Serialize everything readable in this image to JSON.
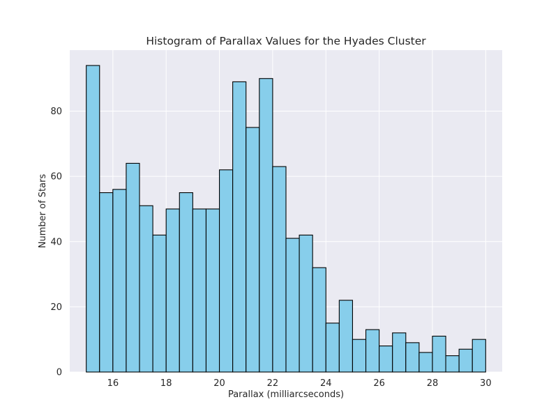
{
  "chart_data": {
    "type": "bar",
    "title": "Histogram of Parallax Values for the Hyades Cluster",
    "xlabel": "Parallax (milliarcseconds)",
    "ylabel": "Number of Stars",
    "xlim": [
      14.38,
      30.62
    ],
    "ylim": [
      0,
      98.7
    ],
    "xticks": [
      16,
      18,
      20,
      22,
      24,
      26,
      28,
      30
    ],
    "yticks": [
      0,
      20,
      40,
      60,
      80
    ],
    "grid": true,
    "bar_color": "#87CEEB",
    "edge_color": "#000000",
    "background_color": "#EAEAF2",
    "grid_color": "#FFFFFF",
    "bin_start": 15,
    "bin_width": 0.5,
    "values": [
      94,
      55,
      56,
      64,
      51,
      42,
      50,
      55,
      50,
      50,
      62,
      89,
      75,
      90,
      63,
      41,
      42,
      32,
      15,
      22,
      10,
      13,
      8,
      12,
      9,
      6,
      11,
      5,
      7,
      10
    ]
  }
}
